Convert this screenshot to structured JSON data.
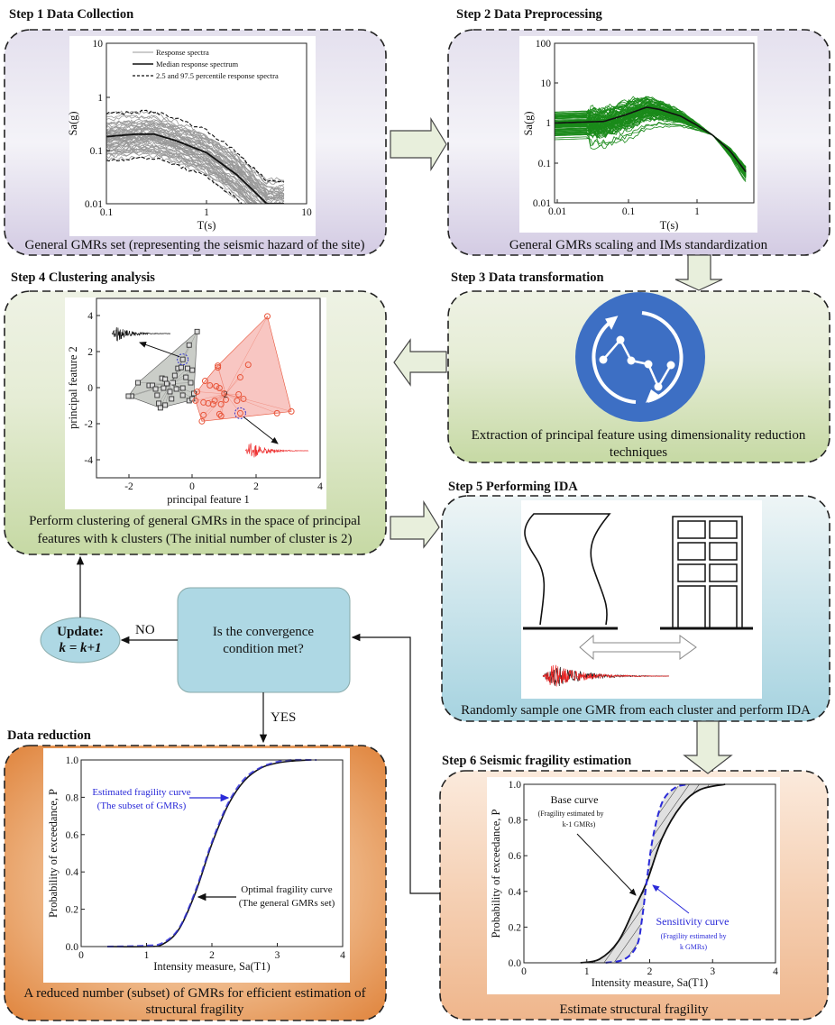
{
  "step1": {
    "title": "Step 1  Data Collection",
    "caption": [
      "General GMRs set (representing the seismic hazard of the site)"
    ]
  },
  "step2": {
    "title": "Step 2  Data Preprocessing",
    "caption": [
      "General GMRs scaling and IMs standardization"
    ]
  },
  "step3": {
    "title": "Step 3  Data transformation",
    "caption": [
      "Extraction of principal feature  using dimensionality reduction",
      "techniques"
    ],
    "icon": "data-transformation-icon",
    "icon_color": "#3d6fc4"
  },
  "step4": {
    "title": "Step 4  Clustering analysis",
    "caption": [
      "Perform clustering of general GMRs  in the space of principal",
      "features with k clusters (The initial number of cluster is 2)"
    ]
  },
  "step5": {
    "title": "Step 5  Performing IDA",
    "caption": [
      "Randomly sample one GMR from each cluster and perform IDA"
    ]
  },
  "step6": {
    "title": "Step 6   Seismic fragility estimation",
    "caption": [
      "Estimate structural fragility"
    ]
  },
  "data_reduction": {
    "title": "Data reduction",
    "caption": [
      "A reduced number (subset) of GMRs for efficient estimation of",
      "structural fragility"
    ]
  },
  "decision": {
    "lines": [
      "Is the convergence",
      "condition met?"
    ],
    "no_label": "NO",
    "yes_label": "YES"
  },
  "update": {
    "lines": [
      "Update:",
      "k = k+1"
    ]
  },
  "colors": {
    "purple_box": "#dcd6ea",
    "green_box": "#cddcae",
    "blue_box": "#a9d5e2",
    "peach_box": "#f2bc94",
    "orange_box": "#e38a45",
    "block_arrow": "#e8efdc",
    "decision_fill": "#aed8e4",
    "cluster1": "#555555",
    "cluster2": "#e8553a",
    "spectra_green": "#1a8a1a",
    "sensitivity_blue": "#2a2ad8"
  },
  "chart_data": [
    {
      "id": "response-spectra",
      "type": "line",
      "xlabel": "T(s)",
      "ylabel": "Sa(g)",
      "xscale": "log",
      "yscale": "log",
      "xlim": [
        0.1,
        10
      ],
      "ylim": [
        0.01,
        10
      ],
      "xticks": [
        "0.1",
        "1",
        "10"
      ],
      "yticks": [
        "10",
        "1",
        "0.1",
        "0.01"
      ],
      "legend": [
        "Response spectra",
        "Median response spectrum",
        "2.5 and 97.5 percentile response spectra"
      ],
      "legend_position": "top",
      "median": {
        "x": [
          0.1,
          0.2,
          0.3,
          0.5,
          1,
          2,
          3,
          4
        ],
        "y": [
          0.18,
          0.2,
          0.2,
          0.15,
          0.09,
          0.035,
          0.017,
          0.01
        ]
      }
    },
    {
      "id": "scaled-spectra",
      "type": "line",
      "xlabel": "T(s)",
      "ylabel": "Sa(g)",
      "xscale": "log",
      "yscale": "log",
      "xlim": [
        0.01,
        6.5
      ],
      "ylim": [
        0.01,
        100
      ],
      "xticks": [
        "0.01",
        "0.1",
        "1"
      ],
      "yticks": [
        "100",
        "10",
        "1",
        "0.1",
        "0.01"
      ],
      "median": {
        "x": [
          0.01,
          0.05,
          0.1,
          0.2,
          0.3,
          0.6,
          1.0,
          1.7,
          3,
          5
        ],
        "y": [
          1.0,
          1.1,
          1.6,
          2.5,
          2.2,
          1.5,
          0.9,
          0.5,
          0.2,
          0.06
        ]
      }
    },
    {
      "id": "clustering",
      "type": "scatter",
      "xlabel": "principal feature 1",
      "ylabel": "principal feature 2",
      "xlim": [
        -3,
        4
      ],
      "ylim": [
        -5,
        5
      ],
      "xticks": [
        "-2",
        "0",
        "2",
        "4"
      ],
      "yticks": [
        "4",
        "2",
        "0",
        "-2",
        "-4"
      ],
      "series": [
        {
          "name": "1",
          "marker": "square",
          "points": [
            [
              -1.9,
              -0.45
            ],
            [
              -2.0,
              -0.45
            ],
            [
              -1.7,
              0.3
            ],
            [
              -1.35,
              0.15
            ],
            [
              -1.25,
              0.15
            ],
            [
              -1.15,
              -0.05
            ],
            [
              -1.1,
              -0.4
            ],
            [
              -1.05,
              -0.85
            ],
            [
              -1.0,
              -1.1
            ],
            [
              -0.85,
              -0.95
            ],
            [
              -0.95,
              0.55
            ],
            [
              -0.85,
              0.5
            ],
            [
              -0.8,
              0.25
            ],
            [
              -0.7,
              -0.2
            ],
            [
              -0.6,
              0.3
            ],
            [
              -0.55,
              0.7
            ],
            [
              -0.5,
              -0.05
            ],
            [
              -0.45,
              1.1
            ],
            [
              -0.35,
              1.15
            ],
            [
              -0.3,
              0.0
            ],
            [
              -0.3,
              -0.4
            ],
            [
              -0.3,
              1.6
            ],
            [
              -0.2,
              0.6
            ],
            [
              -0.15,
              1.1
            ],
            [
              -0.1,
              -0.7
            ],
            [
              -0.05,
              0.3
            ],
            [
              0.0,
              1.0
            ],
            [
              0.0,
              -0.6
            ],
            [
              0.05,
              -0.3
            ],
            [
              -0.1,
              2.4
            ],
            [
              0.15,
              3.15
            ],
            [
              -0.65,
              -0.6
            ],
            [
              -0.9,
              0.0
            ]
          ]
        },
        {
          "name": "2",
          "marker": "circle",
          "points": [
            [
              0.3,
              -1.85
            ],
            [
              0.35,
              -1.5
            ],
            [
              0.1,
              -0.7
            ],
            [
              0.15,
              -0.2
            ],
            [
              0.35,
              -0.8
            ],
            [
              0.4,
              0.4
            ],
            [
              0.5,
              -0.85
            ],
            [
              0.55,
              0.15
            ],
            [
              0.65,
              -0.9
            ],
            [
              0.7,
              -0.7
            ],
            [
              0.75,
              0.1
            ],
            [
              0.8,
              1.15
            ],
            [
              0.8,
              1.25
            ],
            [
              0.85,
              0.0
            ],
            [
              0.85,
              -1.45
            ],
            [
              0.9,
              -1.55
            ],
            [
              0.9,
              -0.9
            ],
            [
              1.0,
              -0.3
            ],
            [
              1.05,
              -0.65
            ],
            [
              1.4,
              -0.7
            ],
            [
              1.45,
              -0.35
            ],
            [
              1.5,
              0.6
            ],
            [
              1.5,
              -1.4
            ],
            [
              1.6,
              -0.6
            ],
            [
              1.75,
              1.3
            ],
            [
              2.35,
              4.0
            ],
            [
              2.65,
              -1.4
            ],
            [
              3.1,
              -1.3
            ]
          ]
        }
      ]
    },
    {
      "id": "fragility-reduction",
      "type": "line",
      "xlabel": "Intensity measure, Sa(T1)",
      "ylabel": "Probability of exceedance, P",
      "xlim": [
        0,
        4
      ],
      "ylim": [
        0,
        1
      ],
      "xticks": [
        "0",
        "1",
        "2",
        "3",
        "4"
      ],
      "yticks": [
        "1.0",
        "0.8",
        "0.6",
        "0.4",
        "0.2",
        "0.0"
      ],
      "series": [
        {
          "name": "Optimal fragility curve (The general GMRs set)",
          "x": [
            0.4,
            1.0,
            1.25,
            1.5,
            1.75,
            2.0,
            2.25,
            2.5,
            2.75,
            3.0,
            3.25,
            3.5
          ],
          "y": [
            0,
            0.0,
            0.013,
            0.095,
            0.29,
            0.55,
            0.76,
            0.89,
            0.957,
            0.984,
            0.995,
            1.0
          ]
        },
        {
          "name": "Estimated fragility curve (The subset of GMRs)",
          "x": [
            0.4,
            1.0,
            1.25,
            1.5,
            1.75,
            2.0,
            2.25,
            2.5,
            2.75,
            3.0,
            3.25,
            3.6
          ],
          "y": [
            0,
            0.005,
            0.02,
            0.1,
            0.3,
            0.56,
            0.77,
            0.9,
            0.96,
            0.99,
            1.0,
            1.0
          ]
        }
      ],
      "annotations": [
        [
          "Estimated fragility curve",
          "(The subset of GMRs)"
        ],
        [
          "Optimal fragility curve",
          "(The general GMRs set)"
        ]
      ]
    },
    {
      "id": "fragility-sensitivity",
      "type": "line",
      "xlabel": "Intensity measure, Sa(T1)",
      "ylabel": "Probability of exceedance, P",
      "xlim": [
        0,
        4
      ],
      "ylim": [
        0,
        1
      ],
      "xticks": [
        "0",
        "1",
        "2",
        "3",
        "4"
      ],
      "yticks": [
        "1.0",
        "0.8",
        "0.6",
        "0.4",
        "0.2",
        "0.0"
      ],
      "series": [
        {
          "name": "Base curve",
          "x": [
            0.9,
            1.2,
            1.5,
            1.75,
            1.95,
            2.2,
            2.5,
            2.8,
            3.2
          ],
          "y": [
            0,
            0.02,
            0.12,
            0.3,
            0.45,
            0.7,
            0.88,
            0.97,
            1.0
          ]
        },
        {
          "name": "Sensitivity curve",
          "x": [
            1.3,
            1.6,
            1.8,
            1.88,
            1.95,
            2.05,
            2.2,
            2.4,
            2.6
          ],
          "y": [
            0,
            0.02,
            0.1,
            0.25,
            0.45,
            0.7,
            0.9,
            0.98,
            1.0
          ]
        }
      ],
      "annotations": [
        [
          "Base curve",
          "(Fragility estimated by",
          "k-1 GMRs)"
        ],
        [
          "Sensitivity curve",
          "(Fragility estimated by",
          "k GMRs)"
        ]
      ]
    }
  ]
}
